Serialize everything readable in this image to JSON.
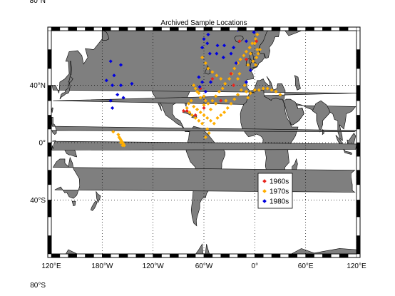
{
  "figure": {
    "title": "Archived Sample Locations",
    "ocean_color": "#ffffff",
    "land_color": "#7f7f7f",
    "frame_style": "black-white checkered border",
    "grid": "dotted",
    "projection": "Miller cylindrical, central meridian 60°W"
  },
  "lat_ticks": [
    "80°N",
    "40°N",
    "0°",
    "40°S",
    "80°S"
  ],
  "lon_ticks": [
    "120°E",
    "180°W",
    "120°W",
    "60°W",
    "0°",
    "60°E",
    "120°E"
  ],
  "chart_data": {
    "type": "scatter",
    "title": "Archived Sample Locations",
    "xlabel": "",
    "ylabel": "",
    "legend_position": "lower-right inside map (South Atlantic)",
    "series": [
      {
        "name": "1960s",
        "color": "#e8261f",
        "marker": "diamond",
        "points": [
          [
            -10,
            55
          ],
          [
            -28,
            47
          ],
          [
            -50,
            44
          ],
          [
            -64,
            38
          ],
          [
            -70,
            20
          ],
          [
            -80,
            23
          ],
          [
            -60,
            25
          ],
          [
            -25,
            40
          ],
          [
            -40,
            30
          ],
          [
            2,
            64
          ],
          [
            -18,
            64
          ],
          [
            -84,
            23
          ]
        ]
      },
      {
        "name": "1970s",
        "color": "#ffae00",
        "marker": "diamond",
        "points": [
          [
            -72,
            40
          ],
          [
            -70,
            38
          ],
          [
            -68,
            36
          ],
          [
            -66,
            35
          ],
          [
            -60,
            33
          ],
          [
            -64,
            32
          ],
          [
            -58,
            30
          ],
          [
            -55,
            28
          ],
          [
            -50,
            30
          ],
          [
            -46,
            33
          ],
          [
            -42,
            36
          ],
          [
            -38,
            38
          ],
          [
            -35,
            41
          ],
          [
            -30,
            44
          ],
          [
            -27,
            47
          ],
          [
            -24,
            50
          ],
          [
            -20,
            53
          ],
          [
            -17,
            55
          ],
          [
            -13,
            57
          ],
          [
            -10,
            59
          ],
          [
            -6,
            61
          ],
          [
            -3,
            63
          ],
          [
            1,
            65
          ],
          [
            3,
            67
          ],
          [
            5,
            70
          ],
          [
            7,
            72
          ],
          [
            0,
            63
          ],
          [
            -5,
            58
          ],
          [
            -8,
            52
          ],
          [
            2,
            56
          ],
          [
            4,
            58
          ],
          [
            6,
            60
          ],
          [
            3,
            60
          ],
          [
            1,
            52
          ],
          [
            -2,
            54
          ],
          [
            -80,
            25
          ],
          [
            -77,
            22
          ],
          [
            -74,
            20
          ],
          [
            -70,
            18
          ],
          [
            -66,
            16
          ],
          [
            -62,
            14
          ],
          [
            -78,
            28
          ],
          [
            -75,
            30
          ],
          [
            -72,
            26
          ],
          [
            -68,
            24
          ],
          [
            -64,
            22
          ],
          [
            -60,
            20
          ],
          [
            -56,
            18
          ],
          [
            -52,
            16
          ],
          [
            -48,
            14
          ],
          [
            -44,
            18
          ],
          [
            -40,
            20
          ],
          [
            -36,
            22
          ],
          [
            -32,
            25
          ],
          [
            -28,
            28
          ],
          [
            -24,
            31
          ],
          [
            -20,
            34
          ],
          [
            -16,
            37
          ],
          [
            -12,
            40
          ],
          [
            -10,
            36
          ],
          [
            -8,
            32
          ],
          [
            -5,
            35
          ],
          [
            0,
            37
          ],
          [
            5,
            37
          ],
          [
            10,
            38
          ],
          [
            15,
            38
          ],
          [
            20,
            37
          ],
          [
            25,
            36
          ],
          [
            30,
            34
          ],
          [
            -60,
            27
          ],
          [
            -52,
            24
          ],
          [
            -46,
            28
          ],
          [
            -34,
            30
          ],
          [
            -56,
            10
          ],
          [
            -58,
            4
          ],
          [
            -54,
            7
          ],
          [
            -40,
            44
          ],
          [
            -45,
            46
          ],
          [
            -50,
            48
          ],
          [
            -55,
            50
          ],
          [
            -58,
            53
          ],
          [
            -62,
            56
          ],
          [
            -20,
            44
          ],
          [
            -18,
            47
          ],
          [
            -161,
            6
          ],
          [
            -160,
            4
          ],
          [
            -159,
            3
          ],
          [
            -158,
            2
          ],
          [
            -157,
            1
          ],
          [
            -156,
            0
          ],
          [
            -155,
            -1
          ],
          [
            -154,
            -2
          ],
          [
            -158,
            0
          ],
          [
            -156,
            -2
          ],
          [
            -167,
            8
          ]
        ]
      },
      {
        "name": "1980s",
        "color": "#0000e0",
        "marker": "diamond",
        "points": [
          [
            -135,
            78
          ],
          [
            -170,
            54
          ],
          [
            -158,
            52
          ],
          [
            -166,
            46
          ],
          [
            -145,
            41
          ],
          [
            -158,
            40
          ],
          [
            -168,
            40
          ],
          [
            -175,
            43
          ],
          [
            -170,
            30
          ],
          [
            -162,
            34
          ],
          [
            -168,
            25
          ],
          [
            -155,
            32
          ],
          [
            -20,
            79
          ],
          [
            -10,
            76
          ],
          [
            0,
            77
          ],
          [
            10,
            78
          ],
          [
            8,
            82
          ],
          [
            16,
            81
          ],
          [
            -30,
            74
          ],
          [
            -55,
            67
          ],
          [
            -62,
            61
          ],
          [
            -53,
            58
          ],
          [
            -45,
            58
          ],
          [
            -36,
            62
          ],
          [
            -20,
            69
          ],
          [
            -6,
            70
          ],
          [
            -1,
            68
          ],
          [
            3,
            69
          ],
          [
            -28,
            58
          ],
          [
            -10,
            64
          ],
          [
            -56,
            63
          ],
          [
            -60,
            65
          ],
          [
            -44,
            62
          ],
          [
            -22,
            53
          ],
          [
            -5,
            49
          ],
          [
            -52,
            42
          ],
          [
            -62,
            42
          ],
          [
            -58,
            36
          ],
          [
            -65,
            39
          ],
          [
            -10,
            42
          ],
          [
            -25,
            61
          ],
          [
            -37,
            56
          ],
          [
            -66,
            45
          ]
        ]
      }
    ]
  }
}
